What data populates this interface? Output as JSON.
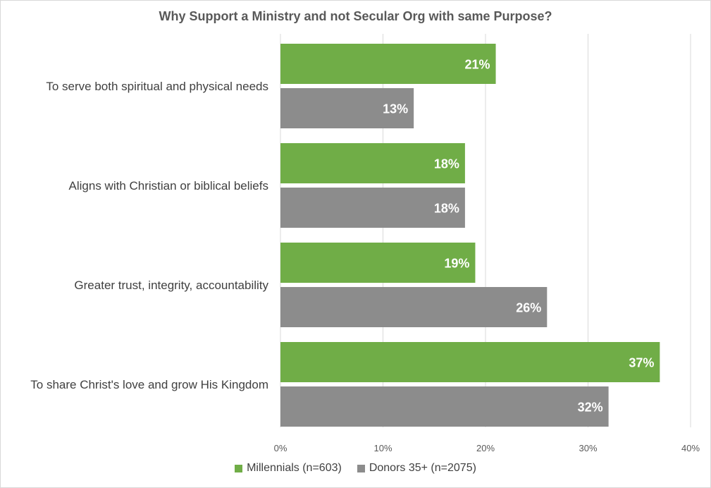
{
  "chart_data": {
    "type": "bar",
    "orientation": "horizontal",
    "title": "Why Support a Ministry and not Secular Org with same Purpose?",
    "xlabel": "",
    "ylabel": "",
    "categories": [
      "To serve both spiritual and physical needs",
      "Aligns with Christian or biblical beliefs",
      "Greater trust, integrity, accountability",
      "To share Christ's love and grow His Kingdom"
    ],
    "series": [
      {
        "name": "Millennials (n=603)",
        "color": "#70ad47",
        "values": [
          21,
          18,
          19,
          37
        ]
      },
      {
        "name": "Donors 35+ (n=2075)",
        "color": "#8c8c8c",
        "values": [
          13,
          18,
          26,
          32
        ]
      }
    ],
    "xlim": [
      0,
      40
    ],
    "xticks": [
      "0%",
      "10%",
      "20%",
      "30%",
      "40%"
    ],
    "value_suffix": "%",
    "grid": true,
    "legend": "bottom"
  }
}
